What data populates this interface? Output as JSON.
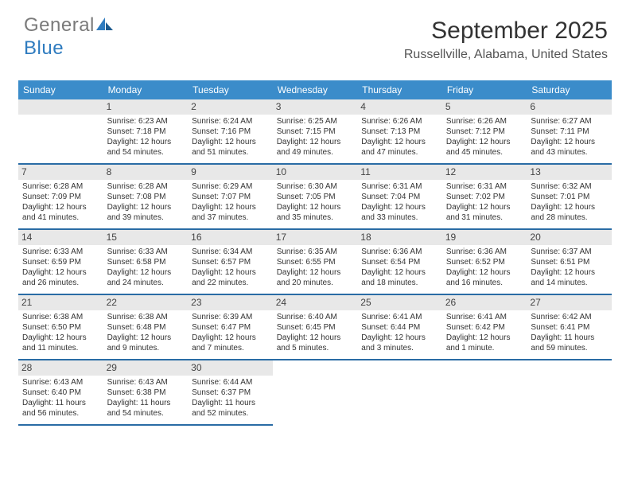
{
  "brand": {
    "general": "General",
    "blue": "Blue"
  },
  "colors": {
    "headerBg": "#3b8cca",
    "headerText": "#ffffff",
    "rowBorder": "#2a6ca5",
    "dayBg": "#e8e8e8",
    "text": "#333333"
  },
  "title": {
    "month": "September 2025",
    "location": "Russellville, Alabama, United States"
  },
  "weekdays": [
    "Sunday",
    "Monday",
    "Tuesday",
    "Wednesday",
    "Thursday",
    "Friday",
    "Saturday"
  ],
  "days": [
    {
      "n": "1",
      "sunrise": "Sunrise: 6:23 AM",
      "sunset": "Sunset: 7:18 PM",
      "day1": "Daylight: 12 hours",
      "day2": "and 54 minutes."
    },
    {
      "n": "2",
      "sunrise": "Sunrise: 6:24 AM",
      "sunset": "Sunset: 7:16 PM",
      "day1": "Daylight: 12 hours",
      "day2": "and 51 minutes."
    },
    {
      "n": "3",
      "sunrise": "Sunrise: 6:25 AM",
      "sunset": "Sunset: 7:15 PM",
      "day1": "Daylight: 12 hours",
      "day2": "and 49 minutes."
    },
    {
      "n": "4",
      "sunrise": "Sunrise: 6:26 AM",
      "sunset": "Sunset: 7:13 PM",
      "day1": "Daylight: 12 hours",
      "day2": "and 47 minutes."
    },
    {
      "n": "5",
      "sunrise": "Sunrise: 6:26 AM",
      "sunset": "Sunset: 7:12 PM",
      "day1": "Daylight: 12 hours",
      "day2": "and 45 minutes."
    },
    {
      "n": "6",
      "sunrise": "Sunrise: 6:27 AM",
      "sunset": "Sunset: 7:11 PM",
      "day1": "Daylight: 12 hours",
      "day2": "and 43 minutes."
    },
    {
      "n": "7",
      "sunrise": "Sunrise: 6:28 AM",
      "sunset": "Sunset: 7:09 PM",
      "day1": "Daylight: 12 hours",
      "day2": "and 41 minutes."
    },
    {
      "n": "8",
      "sunrise": "Sunrise: 6:28 AM",
      "sunset": "Sunset: 7:08 PM",
      "day1": "Daylight: 12 hours",
      "day2": "and 39 minutes."
    },
    {
      "n": "9",
      "sunrise": "Sunrise: 6:29 AM",
      "sunset": "Sunset: 7:07 PM",
      "day1": "Daylight: 12 hours",
      "day2": "and 37 minutes."
    },
    {
      "n": "10",
      "sunrise": "Sunrise: 6:30 AM",
      "sunset": "Sunset: 7:05 PM",
      "day1": "Daylight: 12 hours",
      "day2": "and 35 minutes."
    },
    {
      "n": "11",
      "sunrise": "Sunrise: 6:31 AM",
      "sunset": "Sunset: 7:04 PM",
      "day1": "Daylight: 12 hours",
      "day2": "and 33 minutes."
    },
    {
      "n": "12",
      "sunrise": "Sunrise: 6:31 AM",
      "sunset": "Sunset: 7:02 PM",
      "day1": "Daylight: 12 hours",
      "day2": "and 31 minutes."
    },
    {
      "n": "13",
      "sunrise": "Sunrise: 6:32 AM",
      "sunset": "Sunset: 7:01 PM",
      "day1": "Daylight: 12 hours",
      "day2": "and 28 minutes."
    },
    {
      "n": "14",
      "sunrise": "Sunrise: 6:33 AM",
      "sunset": "Sunset: 6:59 PM",
      "day1": "Daylight: 12 hours",
      "day2": "and 26 minutes."
    },
    {
      "n": "15",
      "sunrise": "Sunrise: 6:33 AM",
      "sunset": "Sunset: 6:58 PM",
      "day1": "Daylight: 12 hours",
      "day2": "and 24 minutes."
    },
    {
      "n": "16",
      "sunrise": "Sunrise: 6:34 AM",
      "sunset": "Sunset: 6:57 PM",
      "day1": "Daylight: 12 hours",
      "day2": "and 22 minutes."
    },
    {
      "n": "17",
      "sunrise": "Sunrise: 6:35 AM",
      "sunset": "Sunset: 6:55 PM",
      "day1": "Daylight: 12 hours",
      "day2": "and 20 minutes."
    },
    {
      "n": "18",
      "sunrise": "Sunrise: 6:36 AM",
      "sunset": "Sunset: 6:54 PM",
      "day1": "Daylight: 12 hours",
      "day2": "and 18 minutes."
    },
    {
      "n": "19",
      "sunrise": "Sunrise: 6:36 AM",
      "sunset": "Sunset: 6:52 PM",
      "day1": "Daylight: 12 hours",
      "day2": "and 16 minutes."
    },
    {
      "n": "20",
      "sunrise": "Sunrise: 6:37 AM",
      "sunset": "Sunset: 6:51 PM",
      "day1": "Daylight: 12 hours",
      "day2": "and 14 minutes."
    },
    {
      "n": "21",
      "sunrise": "Sunrise: 6:38 AM",
      "sunset": "Sunset: 6:50 PM",
      "day1": "Daylight: 12 hours",
      "day2": "and 11 minutes."
    },
    {
      "n": "22",
      "sunrise": "Sunrise: 6:38 AM",
      "sunset": "Sunset: 6:48 PM",
      "day1": "Daylight: 12 hours",
      "day2": "and 9 minutes."
    },
    {
      "n": "23",
      "sunrise": "Sunrise: 6:39 AM",
      "sunset": "Sunset: 6:47 PM",
      "day1": "Daylight: 12 hours",
      "day2": "and 7 minutes."
    },
    {
      "n": "24",
      "sunrise": "Sunrise: 6:40 AM",
      "sunset": "Sunset: 6:45 PM",
      "day1": "Daylight: 12 hours",
      "day2": "and 5 minutes."
    },
    {
      "n": "25",
      "sunrise": "Sunrise: 6:41 AM",
      "sunset": "Sunset: 6:44 PM",
      "day1": "Daylight: 12 hours",
      "day2": "and 3 minutes."
    },
    {
      "n": "26",
      "sunrise": "Sunrise: 6:41 AM",
      "sunset": "Sunset: 6:42 PM",
      "day1": "Daylight: 12 hours",
      "day2": "and 1 minute."
    },
    {
      "n": "27",
      "sunrise": "Sunrise: 6:42 AM",
      "sunset": "Sunset: 6:41 PM",
      "day1": "Daylight: 11 hours",
      "day2": "and 59 minutes."
    },
    {
      "n": "28",
      "sunrise": "Sunrise: 6:43 AM",
      "sunset": "Sunset: 6:40 PM",
      "day1": "Daylight: 11 hours",
      "day2": "and 56 minutes."
    },
    {
      "n": "29",
      "sunrise": "Sunrise: 6:43 AM",
      "sunset": "Sunset: 6:38 PM",
      "day1": "Daylight: 11 hours",
      "day2": "and 54 minutes."
    },
    {
      "n": "30",
      "sunrise": "Sunrise: 6:44 AM",
      "sunset": "Sunset: 6:37 PM",
      "day1": "Daylight: 11 hours",
      "day2": "and 52 minutes."
    }
  ],
  "layout": {
    "leadingBlanks": 1,
    "trailingBlanks": 4
  }
}
